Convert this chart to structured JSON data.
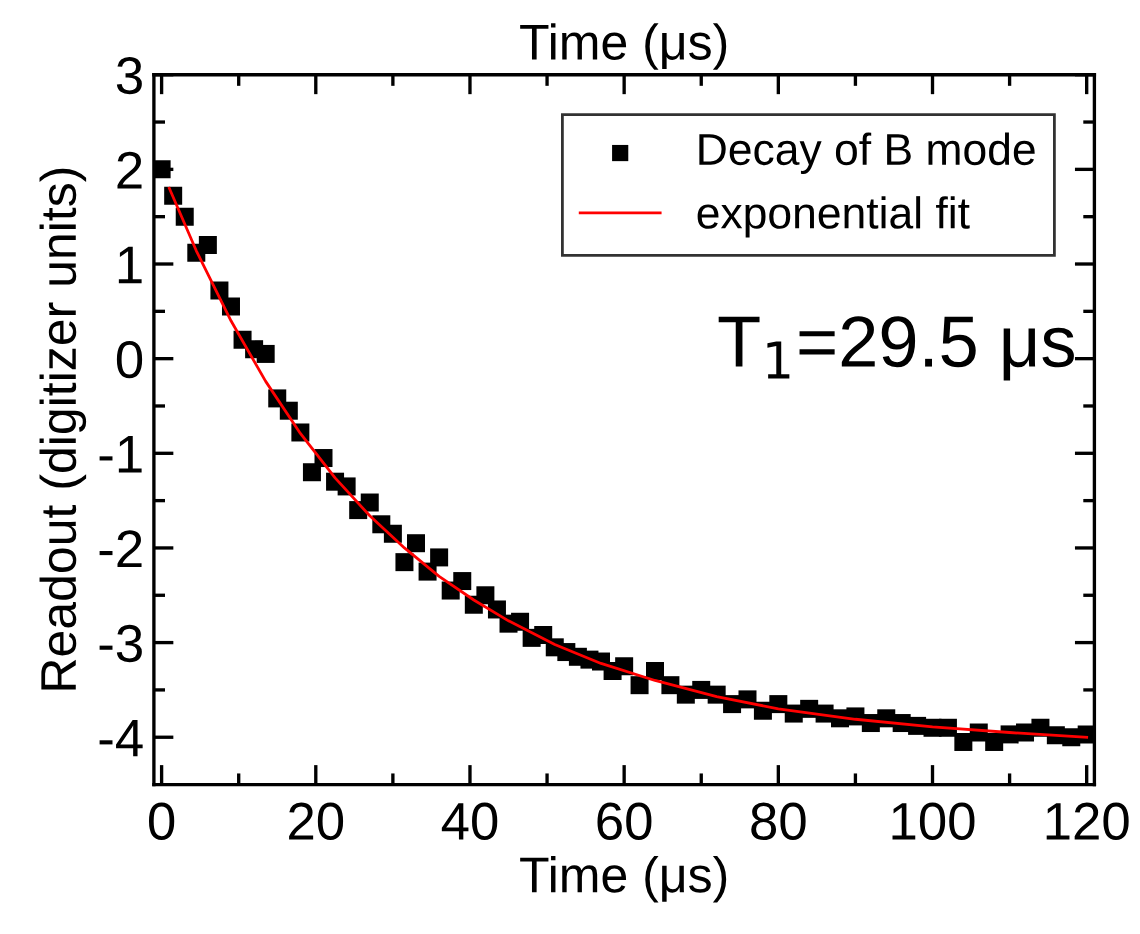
{
  "chart_data": {
    "type": "scatter",
    "xlabel": "Time (μs)",
    "x2label": "Time (μs)",
    "ylabel": "Readout (digitizer units)",
    "xlim": [
      -1,
      121
    ],
    "xticks": [
      0,
      20,
      40,
      60,
      80,
      100,
      120
    ],
    "ylim": [
      -4.5,
      3
    ],
    "yticks": [
      -4,
      -3,
      -2,
      -1,
      0,
      1,
      2,
      3
    ],
    "tick_labels": "xy",
    "grid": false,
    "legend": "top right",
    "annotations": [
      "T$_{1}$=29.5 μs"
    ],
    "series": [
      {
        "name": "Decay of B mode",
        "marker": "square",
        "color": "#000000",
        "x": [
          0,
          1.5,
          3,
          4.5,
          6,
          7.5,
          9,
          10.5,
          12,
          13.5,
          15,
          16.5,
          18,
          19.5,
          21,
          22.5,
          24,
          25.5,
          27,
          28.5,
          30,
          31.5,
          33,
          34.5,
          36,
          37.5,
          39,
          40.5,
          42,
          43.5,
          45,
          46.5,
          48,
          49.5,
          51,
          52.5,
          54,
          55.5,
          57,
          58.5,
          60,
          62,
          64,
          66,
          68,
          70,
          72,
          74,
          76,
          78,
          80,
          82,
          84,
          86,
          88,
          90,
          92,
          94,
          96,
          98,
          100,
          102,
          104,
          106,
          108,
          110,
          112,
          114,
          116,
          118,
          120
        ],
        "values": [
          2.0,
          1.72,
          1.5,
          1.12,
          1.2,
          0.72,
          0.55,
          0.2,
          0.1,
          0.05,
          -0.42,
          -0.55,
          -0.78,
          -1.2,
          -1.05,
          -1.3,
          -1.35,
          -1.6,
          -1.52,
          -1.75,
          -1.85,
          -2.15,
          -1.95,
          -2.25,
          -2.1,
          -2.45,
          -2.35,
          -2.6,
          -2.5,
          -2.65,
          -2.8,
          -2.78,
          -2.95,
          -2.92,
          -3.05,
          -3.1,
          -3.15,
          -3.18,
          -3.2,
          -3.3,
          -3.25,
          -3.45,
          -3.3,
          -3.45,
          -3.55,
          -3.5,
          -3.55,
          -3.65,
          -3.6,
          -3.72,
          -3.65,
          -3.75,
          -3.7,
          -3.75,
          -3.8,
          -3.78,
          -3.85,
          -3.8,
          -3.85,
          -3.88,
          -3.9,
          -3.9,
          -4.05,
          -3.95,
          -4.05,
          -3.97,
          -3.95,
          -3.9,
          -3.98,
          -4.0,
          -3.97
        ]
      },
      {
        "name": "exponential fit",
        "type": "line",
        "color": "#ff0000",
        "marker": "none",
        "x": [
          1,
          4.5,
          9,
          13.5,
          18,
          22.5,
          27,
          31.5,
          36,
          40.5,
          45,
          51,
          57,
          64,
          72,
          80,
          90,
          100,
          110,
          120
        ],
        "values": [
          1.8,
          1.14,
          0.4,
          -0.24,
          -0.79,
          -1.26,
          -1.66,
          -2.0,
          -2.3,
          -2.55,
          -2.77,
          -3.02,
          -3.22,
          -3.4,
          -3.57,
          -3.7,
          -3.81,
          -3.89,
          -3.95,
          -4.0
        ]
      }
    ]
  }
}
